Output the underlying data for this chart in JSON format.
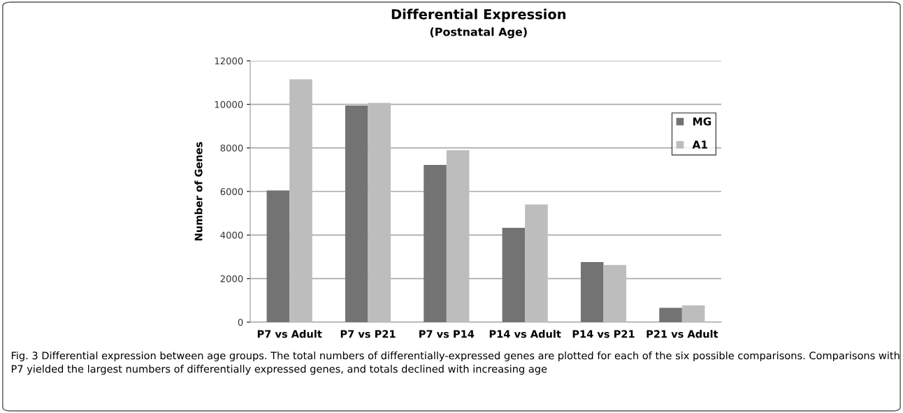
{
  "chart_data": {
    "type": "bar",
    "title": "Differential Expression",
    "subtitle": "(Postnatal Age)",
    "ylabel": "Number of Genes",
    "categories": [
      "P7 vs Adult",
      "P7 vs P21",
      "P7 vs P14",
      "P14 vs Adult",
      "P14 vs P21",
      "P21 vs Adult"
    ],
    "series": [
      {
        "name": "MG",
        "color": "#737373",
        "values": [
          6050,
          9950,
          7220,
          4330,
          2760,
          660
        ]
      },
      {
        "name": "A1",
        "color": "#bdbdbd",
        "values": [
          11150,
          10070,
          7890,
          5410,
          2620,
          770
        ]
      }
    ],
    "ylim": [
      0,
      12000
    ],
    "yticks": [
      0,
      2000,
      4000,
      6000,
      8000,
      10000,
      12000
    ],
    "grid": "y",
    "legend": "right",
    "annotations": [
      "Fig. 3 Differential expression between age groups. The total numbers of differentially-expressed genes are plotted for each of the six possible comparisons. Comparisons with P7 yielded the largest numbers of differentially expressed genes, and totals declined with increasing age"
    ]
  }
}
